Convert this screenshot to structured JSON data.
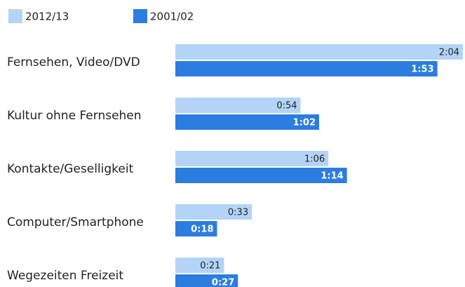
{
  "chart_data": {
    "type": "hbar",
    "categories": [
      "Fernsehen, Video/DVD",
      "Kultur ohne Fernsehen",
      "Kontakte/Geselligkeit",
      "Computer/Smartphone",
      "Wegezeiten Freizeit"
    ],
    "series": [
      {
        "name": "2012/13",
        "color": "#b3d4f7",
        "values": [
          124,
          54,
          66,
          33,
          21
        ],
        "value_labels": [
          "2:04",
          "0:54",
          "1:06",
          "0:33",
          "0:21"
        ]
      },
      {
        "name": "2001/02",
        "color": "#2b7de0",
        "values": [
          113,
          62,
          74,
          18,
          27
        ],
        "value_labels": [
          "1:53",
          "1:02",
          "1:14",
          "0:18",
          "0:27"
        ]
      }
    ]
  }
}
